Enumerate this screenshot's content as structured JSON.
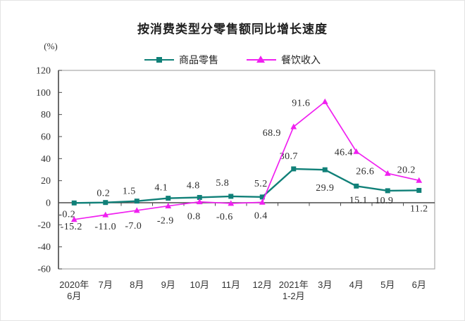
{
  "chart_data": {
    "type": "line",
    "title": "按消费类型分零售额同比增长速度",
    "unit_label": "(%)",
    "categories": [
      [
        "2020年",
        "6月"
      ],
      [
        "7月"
      ],
      [
        "8月"
      ],
      [
        "9月"
      ],
      [
        "10月"
      ],
      [
        "11月"
      ],
      [
        "12月"
      ],
      [
        "2021年",
        "1-2月"
      ],
      [
        "3月"
      ],
      [
        "4月"
      ],
      [
        "5月"
      ],
      [
        "6月"
      ]
    ],
    "ylim": [
      -60,
      120
    ],
    "yticks": [
      120,
      100,
      80,
      60,
      40,
      20,
      0,
      -20,
      -40,
      -60
    ],
    "grid": false,
    "legend_position": "top-center",
    "series": [
      {
        "key": "goods-retail",
        "name": "商品零售",
        "color": "#108078",
        "marker": "square",
        "values": [
          -0.2,
          0.2,
          1.5,
          4.1,
          4.8,
          5.8,
          5.2,
          30.7,
          29.9,
          15.1,
          10.9,
          11.2
        ],
        "label_offsets": [
          [
            -10,
            20
          ],
          [
            -3,
            -9
          ],
          [
            -11,
            -10
          ],
          [
            -10,
            -11
          ],
          [
            -9,
            -13
          ],
          [
            -12,
            -15
          ],
          [
            -2,
            -15
          ],
          [
            -7,
            -14
          ],
          [
            0,
            30
          ],
          [
            3,
            24
          ],
          [
            -5,
            18
          ],
          [
            0,
            30
          ]
        ]
      },
      {
        "key": "catering-revenue",
        "name": "餐饮收入",
        "color": "#f020f0",
        "marker": "triangle",
        "values": [
          -15.2,
          -11.0,
          -7.0,
          -2.9,
          0.8,
          -0.6,
          0.4,
          68.9,
          91.6,
          46.4,
          26.6,
          20.2
        ],
        "label_offsets": [
          [
            -4,
            14
          ],
          [
            0,
            21
          ],
          [
            -5,
            26
          ],
          [
            -4,
            25
          ],
          [
            -8,
            25
          ],
          [
            -9,
            23
          ],
          [
            -2,
            23
          ],
          [
            -31,
            13
          ],
          [
            -34,
            6
          ],
          [
            -18,
            5
          ],
          [
            -32,
            1
          ],
          [
            -18,
            -11
          ]
        ]
      }
    ],
    "colors": {
      "axis_line": "#4a4a4a",
      "plot_border": "#ababab",
      "label_text": "#2d2d2d",
      "title_text": "#1f1f1f"
    }
  }
}
